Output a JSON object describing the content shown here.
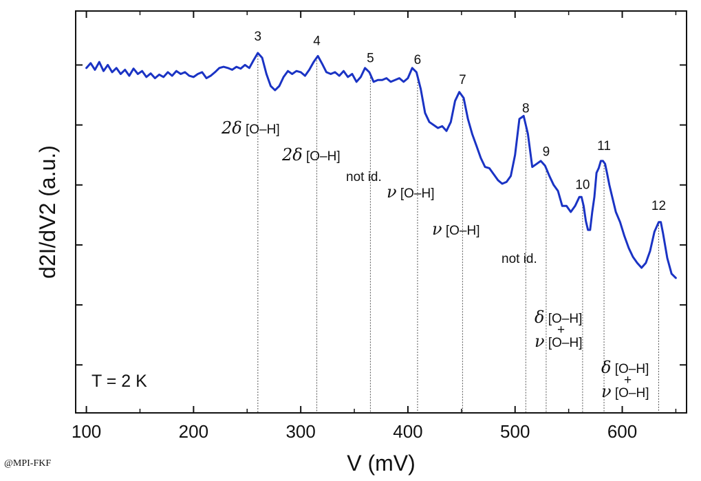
{
  "chart_data": {
    "type": "line",
    "xlabel": "V (mV)",
    "ylabel": "d2I/dV2 (a.u.)",
    "xlim": [
      90,
      660
    ],
    "ylim": [
      -5.8,
      0.9
    ],
    "xticks": [
      100,
      200,
      300,
      400,
      500,
      600
    ],
    "line_color": "#1a33c4",
    "temperature": "T = 2 K",
    "series": [
      {
        "x": [
          100,
          104,
          108,
          112,
          116,
          120,
          124,
          128,
          132,
          136,
          140,
          144,
          148,
          152,
          156,
          160,
          164,
          168,
          172,
          176,
          180,
          184,
          188,
          192,
          196,
          200,
          204,
          208,
          212,
          216,
          220,
          224,
          228,
          232,
          236,
          240,
          244,
          248,
          252,
          256,
          260,
          264,
          268,
          272,
          276,
          280,
          284,
          288,
          292,
          296,
          300,
          304,
          308,
          312,
          316,
          320,
          324,
          328,
          332,
          336,
          340,
          344,
          348,
          352,
          356,
          360,
          364,
          368,
          372,
          376,
          380,
          384,
          388,
          392,
          396,
          400,
          404,
          408,
          412,
          416,
          420,
          424,
          428,
          432,
          436,
          440,
          444,
          448,
          452,
          456,
          460,
          464,
          468,
          472,
          476,
          480,
          484,
          488,
          492,
          496,
          500,
          504,
          508,
          512,
          516,
          520,
          524,
          528,
          532,
          536,
          540,
          544,
          548,
          552,
          556,
          560,
          562,
          564,
          566,
          568,
          570,
          572,
          574,
          576,
          578,
          580,
          582,
          584,
          586,
          588,
          590,
          594,
          598,
          602,
          606,
          610,
          614,
          618,
          622,
          626,
          630,
          634,
          636,
          638,
          642,
          646,
          650
        ],
        "y": [
          -0.05,
          0.03,
          -0.08,
          0.05,
          -0.1,
          0.0,
          -0.12,
          -0.05,
          -0.15,
          -0.08,
          -0.18,
          -0.06,
          -0.15,
          -0.1,
          -0.2,
          -0.14,
          -0.22,
          -0.16,
          -0.2,
          -0.12,
          -0.18,
          -0.1,
          -0.15,
          -0.12,
          -0.18,
          -0.2,
          -0.15,
          -0.12,
          -0.22,
          -0.18,
          -0.12,
          -0.05,
          -0.03,
          -0.05,
          -0.08,
          -0.03,
          -0.06,
          0.0,
          -0.05,
          0.08,
          0.2,
          0.12,
          -0.15,
          -0.35,
          -0.42,
          -0.35,
          -0.2,
          -0.1,
          -0.15,
          -0.1,
          -0.12,
          -0.18,
          -0.08,
          0.05,
          0.15,
          0.02,
          -0.12,
          -0.15,
          -0.12,
          -0.18,
          -0.1,
          -0.2,
          -0.15,
          -0.28,
          -0.2,
          -0.05,
          -0.12,
          -0.28,
          -0.25,
          -0.25,
          -0.22,
          -0.28,
          -0.25,
          -0.22,
          -0.28,
          -0.22,
          -0.05,
          -0.12,
          -0.4,
          -0.8,
          -0.95,
          -1.0,
          -1.05,
          -1.02,
          -1.1,
          -0.95,
          -0.6,
          -0.45,
          -0.55,
          -0.9,
          -1.15,
          -1.35,
          -1.55,
          -1.7,
          -1.72,
          -1.82,
          -1.92,
          -1.98,
          -1.95,
          -1.85,
          -1.5,
          -0.9,
          -0.85,
          -1.15,
          -1.7,
          -1.65,
          -1.6,
          -1.68,
          -1.85,
          -2.0,
          -2.1,
          -2.35,
          -2.35,
          -2.45,
          -2.35,
          -2.2,
          -2.2,
          -2.35,
          -2.6,
          -2.75,
          -2.75,
          -2.45,
          -2.2,
          -1.8,
          -1.72,
          -1.6,
          -1.6,
          -1.65,
          -1.82,
          -2.0,
          -2.15,
          -2.45,
          -2.62,
          -2.85,
          -3.05,
          -3.2,
          -3.3,
          -3.38,
          -3.3,
          -3.1,
          -2.78,
          -2.62,
          -2.62,
          -2.8,
          -3.22,
          -3.48,
          -3.55
        ]
      }
    ],
    "peaks": [
      {
        "label": "3",
        "x": 260
      },
      {
        "label": "4",
        "x": 315
      },
      {
        "label": "5",
        "x": 365
      },
      {
        "label": "6",
        "x": 409
      },
      {
        "label": "7",
        "x": 451
      },
      {
        "label": "8",
        "x": 510
      },
      {
        "label": "9",
        "x": 529
      },
      {
        "label": "10",
        "x": 563
      },
      {
        "label": "11",
        "x": 583
      },
      {
        "label": "12",
        "x": 634
      }
    ],
    "annotations": {
      "a3": {
        "greek": "2δ",
        "text": " [O–H]"
      },
      "a4": {
        "greek": "2δ",
        "text": " [O–H]"
      },
      "a5": {
        "text": "not id."
      },
      "a6": {
        "greek": "ν",
        "text": " [O–H]"
      },
      "a7": {
        "greek": "ν",
        "text": " [O–H]"
      },
      "a9": {
        "text": "not id."
      },
      "a10_d": {
        "greek": "δ",
        "text": " [O–H]"
      },
      "a10_plus": "+",
      "a10_n": {
        "greek": "ν",
        "text": " [O–H]"
      },
      "a12_d": {
        "greek": "δ",
        "text": " [O–H]"
      },
      "a12_plus": "+",
      "a12_n": {
        "greek": "ν",
        "text": " [O–H]"
      }
    }
  },
  "credit": "@MPI-FKF"
}
